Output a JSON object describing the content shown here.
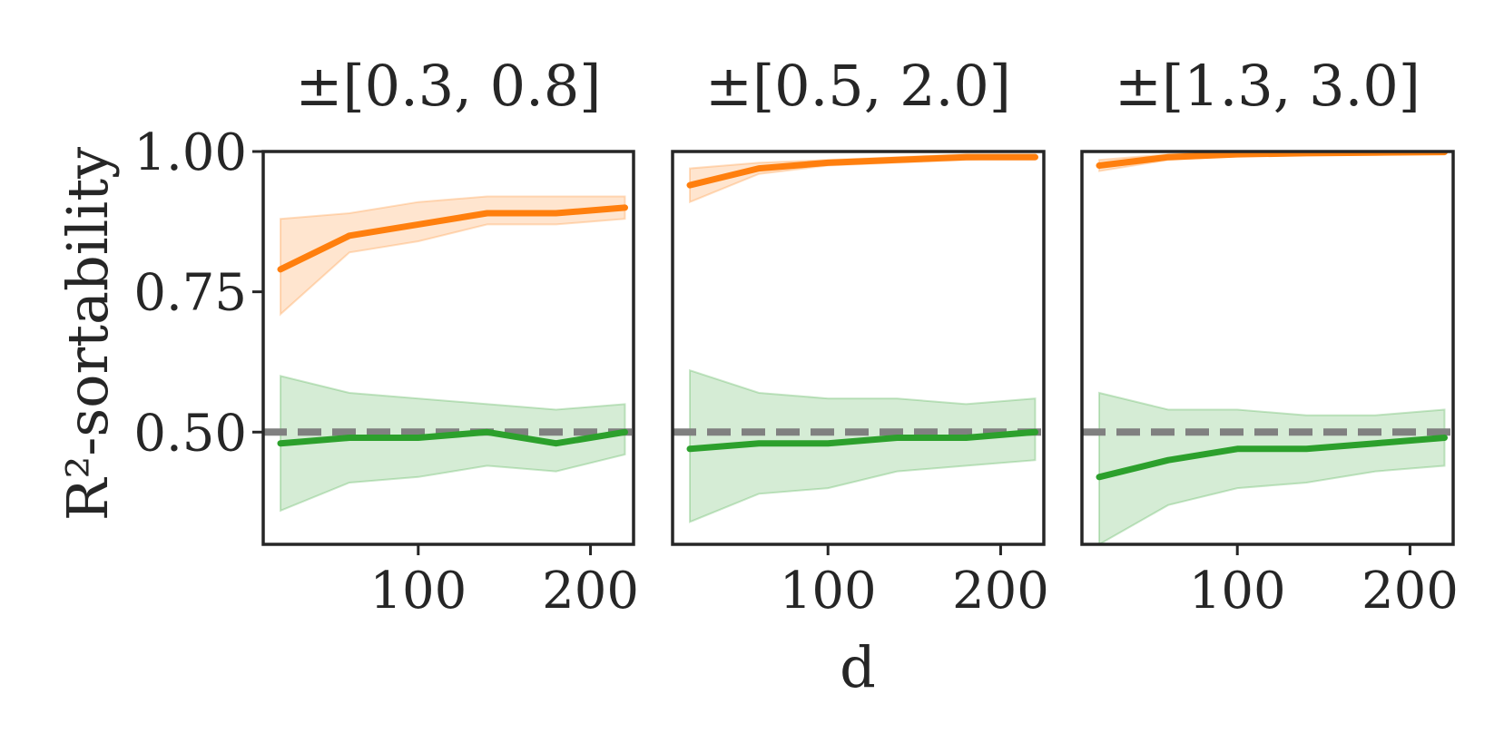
{
  "chart_data": {
    "type": "line",
    "ylabel": "R²-sortability",
    "xlabel": "d",
    "xlim": [
      10,
      225
    ],
    "ylim": [
      0.3,
      1.0
    ],
    "xticks": [
      "100",
      "200"
    ],
    "xtick_values": [
      100,
      200
    ],
    "yticks": [
      "1.00",
      "0.75",
      "0.50"
    ],
    "ytick_values": [
      1.0,
      0.75,
      0.5
    ],
    "baseline": {
      "value": 0.5,
      "color": "#808080",
      "style": "dashed"
    },
    "colors": {
      "orange": "#ff7f0e",
      "green": "#2ca02c",
      "axis": "#262626"
    },
    "panels": [
      {
        "title": "±[0.3, 0.8]",
        "x": [
          20,
          60,
          100,
          140,
          180,
          220
        ],
        "series": [
          {
            "name": "orange",
            "values": [
              0.79,
              0.85,
              0.87,
              0.89,
              0.89,
              0.9
            ],
            "lower": [
              0.71,
              0.82,
              0.84,
              0.87,
              0.87,
              0.88
            ],
            "upper": [
              0.88,
              0.89,
              0.91,
              0.92,
              0.92,
              0.92
            ]
          },
          {
            "name": "green",
            "values": [
              0.48,
              0.49,
              0.49,
              0.5,
              0.48,
              0.5
            ],
            "lower": [
              0.36,
              0.41,
              0.42,
              0.44,
              0.43,
              0.46
            ],
            "upper": [
              0.6,
              0.57,
              0.56,
              0.55,
              0.54,
              0.55
            ]
          }
        ]
      },
      {
        "title": "±[0.5, 2.0]",
        "x": [
          20,
          60,
          100,
          140,
          180,
          220
        ],
        "series": [
          {
            "name": "orange",
            "values": [
              0.94,
              0.97,
              0.98,
              0.985,
              0.99,
              0.99
            ],
            "lower": [
              0.91,
              0.96,
              0.975,
              0.98,
              0.985,
              0.99
            ],
            "upper": [
              0.97,
              0.98,
              0.985,
              0.99,
              0.995,
              0.995
            ]
          },
          {
            "name": "green",
            "values": [
              0.47,
              0.48,
              0.48,
              0.49,
              0.49,
              0.5
            ],
            "lower": [
              0.34,
              0.39,
              0.4,
              0.43,
              0.44,
              0.45
            ],
            "upper": [
              0.61,
              0.57,
              0.56,
              0.56,
              0.55,
              0.56
            ]
          }
        ]
      },
      {
        "title": "±[1.3, 3.0]",
        "x": [
          20,
          60,
          100,
          140,
          180,
          220
        ],
        "series": [
          {
            "name": "orange",
            "values": [
              0.975,
              0.99,
              0.995,
              0.997,
              0.998,
              0.999
            ],
            "lower": [
              0.965,
              0.985,
              0.992,
              0.995,
              0.997,
              0.998
            ],
            "upper": [
              0.985,
              0.995,
              0.998,
              0.999,
              1.0,
              1.0
            ]
          },
          {
            "name": "green",
            "values": [
              0.42,
              0.45,
              0.47,
              0.47,
              0.48,
              0.49
            ],
            "lower": [
              0.3,
              0.37,
              0.4,
              0.41,
              0.43,
              0.44
            ],
            "upper": [
              0.57,
              0.54,
              0.54,
              0.53,
              0.53,
              0.54
            ]
          }
        ]
      }
    ]
  }
}
